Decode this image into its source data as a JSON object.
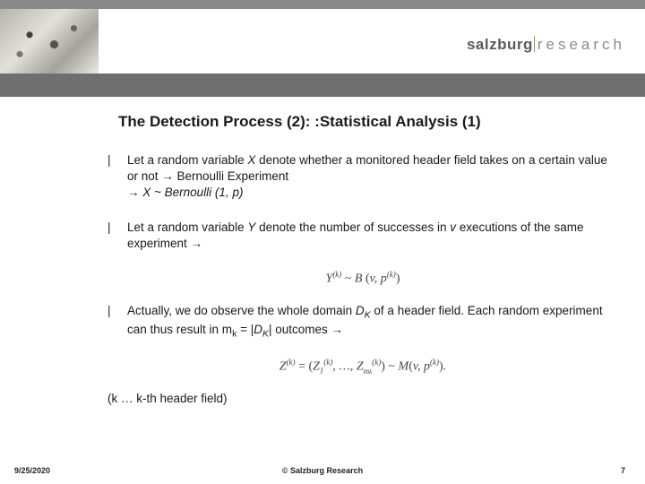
{
  "logo": {
    "bold": "salzburg",
    "light": "research"
  },
  "title": "The Detection Process (2): :Statistical Analysis (1)",
  "bullets": [
    {
      "html": "Let a random variable <i>X</i> denote whether a monitored header field takes on a certain value or not → Bernoulli Experiment<br>→ <i>X ~ Bernoulli (1, p)</i>"
    },
    {
      "html": "Let  a random variable <i>Y</i> denote the number of successes in <i>v</i> executions of the same experiment →"
    },
    {
      "html": "Actually, we do observe the whole domain <i>D<span class=\"sub\">K</span></i> of a header field. Each random experiment can thus result in m<span class=\"sub\">k</span> = |<i>D<span class=\"sub\">K</span></i>| outcomes →"
    }
  ],
  "formulas": [
    "Y<span class=\"supf\">(k)</span> <span class=\"up\">~</span> B <span class=\"up\">(</span>v, p<span class=\"supf\">(k)</span><span class=\"up\">)</span>",
    "Z<span class=\"supf\">(k)</span> <span class=\"up\">= (</span>Z<span class=\"subf\">1</span><span class=\"supf\">(k)</span>, …, Z<span class=\"subf\">m<span style=\"font-size:7px\">k</span></span><span class=\"supf\">(k)</span><span class=\"up\">) ~</span> M<span class=\"up\">(</span>v, p<span class=\"supf\">(k)</span><span class=\"up\">)</span>."
  ],
  "note": "(k … k-th header field)",
  "footer": {
    "date": "9/25/2020",
    "copy": "© Salzburg Research",
    "page": "7"
  },
  "colors": {
    "top_strip": "#8a8a8a",
    "divider": "#6f6f6f",
    "text": "#1a1a1a",
    "logo_bold": "#5a5a5a",
    "logo_light": "#8a8a8a",
    "logo_sep": "#b08850",
    "background": "#ffffff"
  }
}
